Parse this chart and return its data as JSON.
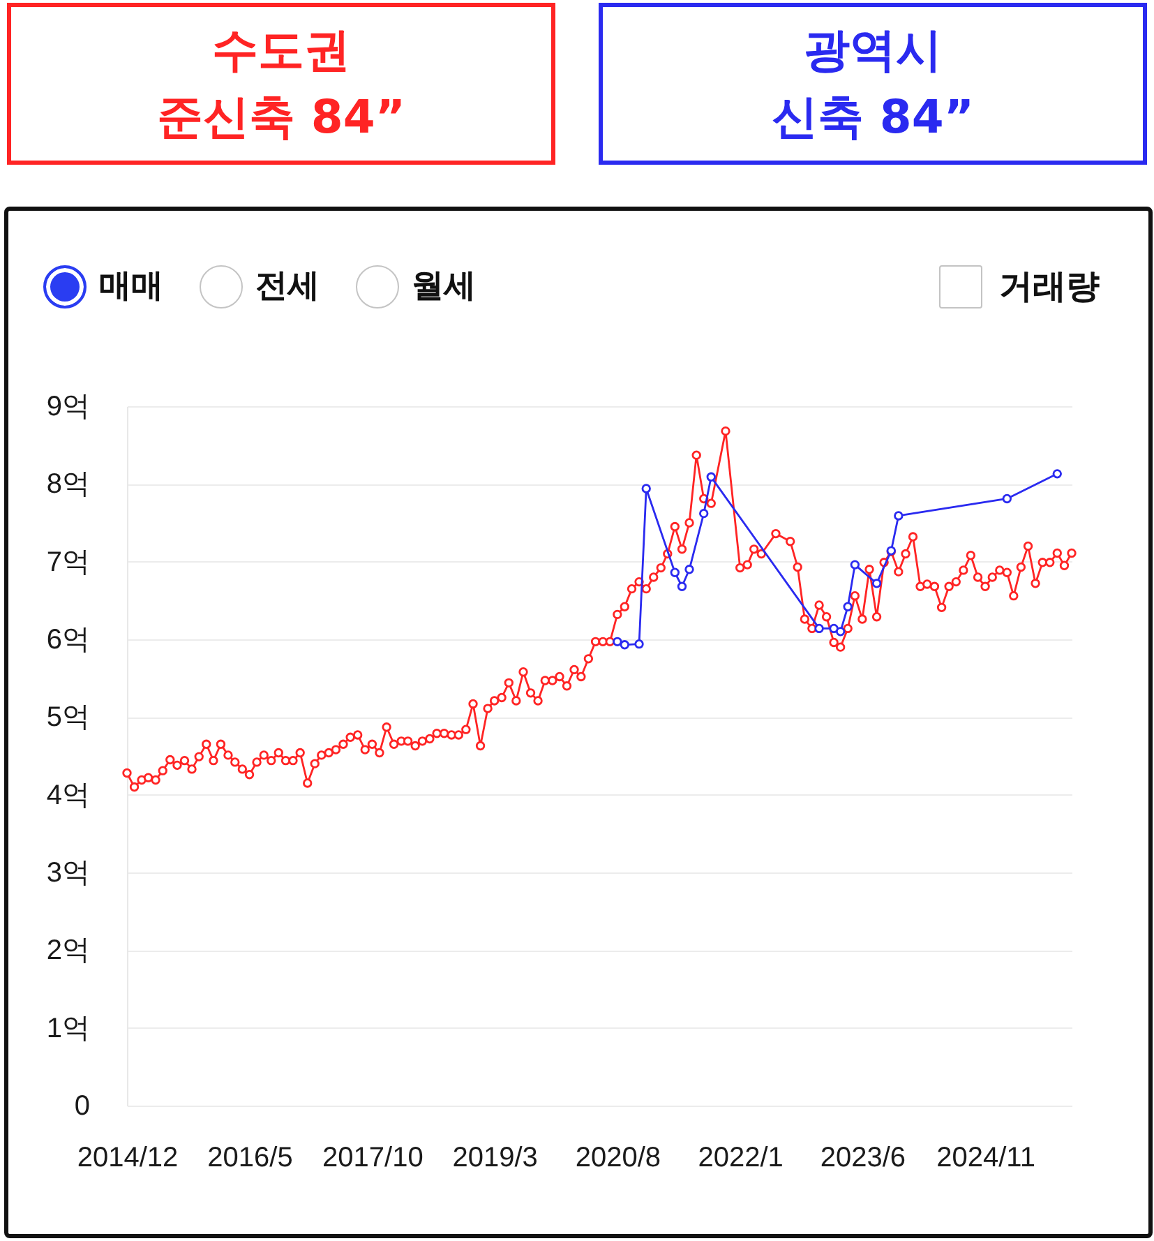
{
  "chart_data": {
    "type": "line",
    "annotations": [
      "매매",
      "전세",
      "월세",
      "거래량"
    ],
    "xlim": [
      "2014-12",
      "2025-11"
    ],
    "xticks": [
      {
        "value": "2014-12",
        "label": "2014/12"
      },
      {
        "value": "2016-05",
        "label": "2016/5"
      },
      {
        "value": "2017-10",
        "label": "2017/10"
      },
      {
        "value": "2019-03",
        "label": "2019/3"
      },
      {
        "value": "2020-08",
        "label": "2020/8"
      },
      {
        "value": "2022-01",
        "label": "2022/1"
      },
      {
        "value": "2023-06",
        "label": "2023/6"
      },
      {
        "value": "2024-11",
        "label": "2024/11"
      }
    ],
    "ylim": [
      0,
      9
    ],
    "yticks": [
      0,
      {
        "value": 1,
        "label": "1억"
      },
      {
        "value": 2,
        "label": "2억"
      },
      {
        "value": 3,
        "label": "3억"
      },
      {
        "value": 4,
        "label": "4억"
      },
      {
        "value": 5,
        "label": "5억"
      },
      {
        "value": 6,
        "label": "6억"
      },
      {
        "value": 7,
        "label": "7억"
      },
      {
        "value": 8,
        "label": "8억"
      },
      {
        "value": 9,
        "label": "9억"
      }
    ],
    "grid": "y",
    "legend": "top",
    "marker": "circle",
    "series": [
      {
        "name": "수도권 준신축 84”",
        "color": "#ff2424",
        "x": [
          "2014-12",
          "2015-01",
          "2015-02",
          "2015-03",
          "2015-04",
          "2015-05",
          "2015-06",
          "2015-07",
          "2015-08",
          "2015-09",
          "2015-10",
          "2015-11",
          "2015-12",
          "2016-01",
          "2016-02",
          "2016-03",
          "2016-04",
          "2016-05",
          "2016-06",
          "2016-07",
          "2016-08",
          "2016-09",
          "2016-10",
          "2016-11",
          "2016-12",
          "2017-01",
          "2017-02",
          "2017-03",
          "2017-04",
          "2017-05",
          "2017-06",
          "2017-07",
          "2017-08",
          "2017-09",
          "2017-10",
          "2017-11",
          "2017-12",
          "2018-01",
          "2018-02",
          "2018-03",
          "2018-04",
          "2018-05",
          "2018-06",
          "2018-07",
          "2018-08",
          "2018-09",
          "2018-10",
          "2018-11",
          "2018-12",
          "2019-01",
          "2019-02",
          "2019-03",
          "2019-04",
          "2019-05",
          "2019-06",
          "2019-07",
          "2019-08",
          "2019-09",
          "2019-10",
          "2019-11",
          "2019-12",
          "2020-01",
          "2020-02",
          "2020-03",
          "2020-04",
          "2020-05",
          "2020-06",
          "2020-07",
          "2020-08",
          "2020-09",
          "2020-10",
          "2020-11",
          "2020-12",
          "2021-01",
          "2021-02",
          "2021-03",
          "2021-04",
          "2021-05",
          "2021-06",
          "2021-07",
          "2021-08",
          "2021-09",
          "2021-11",
          "2022-01",
          "2022-02",
          "2022-03",
          "2022-04",
          "2022-06",
          "2022-08",
          "2022-09",
          "2022-10",
          "2022-11",
          "2022-12",
          "2023-01",
          "2023-02",
          "2023-03",
          "2023-04",
          "2023-05",
          "2023-06",
          "2023-07",
          "2023-08",
          "2023-09",
          "2023-10",
          "2023-11",
          "2023-12",
          "2024-01",
          "2024-02",
          "2024-03",
          "2024-04",
          "2024-05",
          "2024-06",
          "2024-07",
          "2024-08",
          "2024-09",
          "2024-10",
          "2024-11",
          "2024-12",
          "2025-01",
          "2025-02",
          "2025-03",
          "2025-04",
          "2025-05",
          "2025-06",
          "2025-07",
          "2025-08",
          "2025-09",
          "2025-10",
          "2025-11"
        ],
        "values": [
          4.28,
          4.1,
          4.19,
          4.22,
          4.19,
          4.31,
          4.45,
          4.38,
          4.44,
          4.33,
          4.49,
          4.65,
          4.44,
          4.65,
          4.51,
          4.42,
          4.33,
          4.26,
          4.42,
          4.51,
          4.44,
          4.54,
          4.44,
          4.44,
          4.54,
          4.15,
          4.4,
          4.51,
          4.54,
          4.58,
          4.65,
          4.74,
          4.77,
          4.58,
          4.65,
          4.54,
          4.87,
          4.65,
          4.69,
          4.69,
          4.63,
          4.69,
          4.72,
          4.79,
          4.79,
          4.77,
          4.77,
          4.84,
          5.17,
          4.63,
          5.11,
          5.21,
          5.25,
          5.44,
          5.21,
          5.58,
          5.31,
          5.21,
          5.47,
          5.47,
          5.52,
          5.4,
          5.61,
          5.52,
          5.75,
          5.97,
          5.97,
          5.97,
          6.32,
          6.42,
          6.65,
          6.74,
          6.65,
          6.8,
          6.92,
          7.1,
          7.45,
          7.16,
          7.5,
          8.37,
          7.81,
          7.75,
          8.68,
          6.92,
          6.96,
          7.16,
          7.1,
          7.36,
          7.26,
          6.93,
          6.26,
          6.14,
          6.44,
          6.29,
          5.96,
          5.9,
          6.14,
          6.56,
          6.26,
          6.9,
          6.29,
          6.99,
          7.13,
          6.87,
          7.1,
          7.32,
          6.68,
          6.71,
          6.68,
          6.41,
          6.68,
          6.74,
          6.89,
          7.08,
          6.8,
          6.68,
          6.8,
          6.89,
          6.86,
          6.56,
          6.93,
          7.2,
          6.72,
          6.99,
          6.99,
          7.11,
          6.95,
          7.11
        ]
      },
      {
        "name": "광역시 신축 84”",
        "color": "#2a2af0",
        "x": [
          "2020-08",
          "2020-09",
          "2020-11",
          "2020-12",
          "2021-04",
          "2021-05",
          "2021-06",
          "2021-08",
          "2021-09",
          "2022-12",
          "2023-02",
          "2023-03",
          "2023-04",
          "2023-05",
          "2023-08",
          "2023-10",
          "2023-11",
          "2025-02",
          "2025-09"
        ],
        "values": [
          5.97,
          5.93,
          5.94,
          7.94,
          6.86,
          6.68,
          6.9,
          7.62,
          8.09,
          6.14,
          6.14,
          6.1,
          6.42,
          6.96,
          6.72,
          7.14,
          7.59,
          7.81,
          8.13
        ]
      }
    ]
  }
}
